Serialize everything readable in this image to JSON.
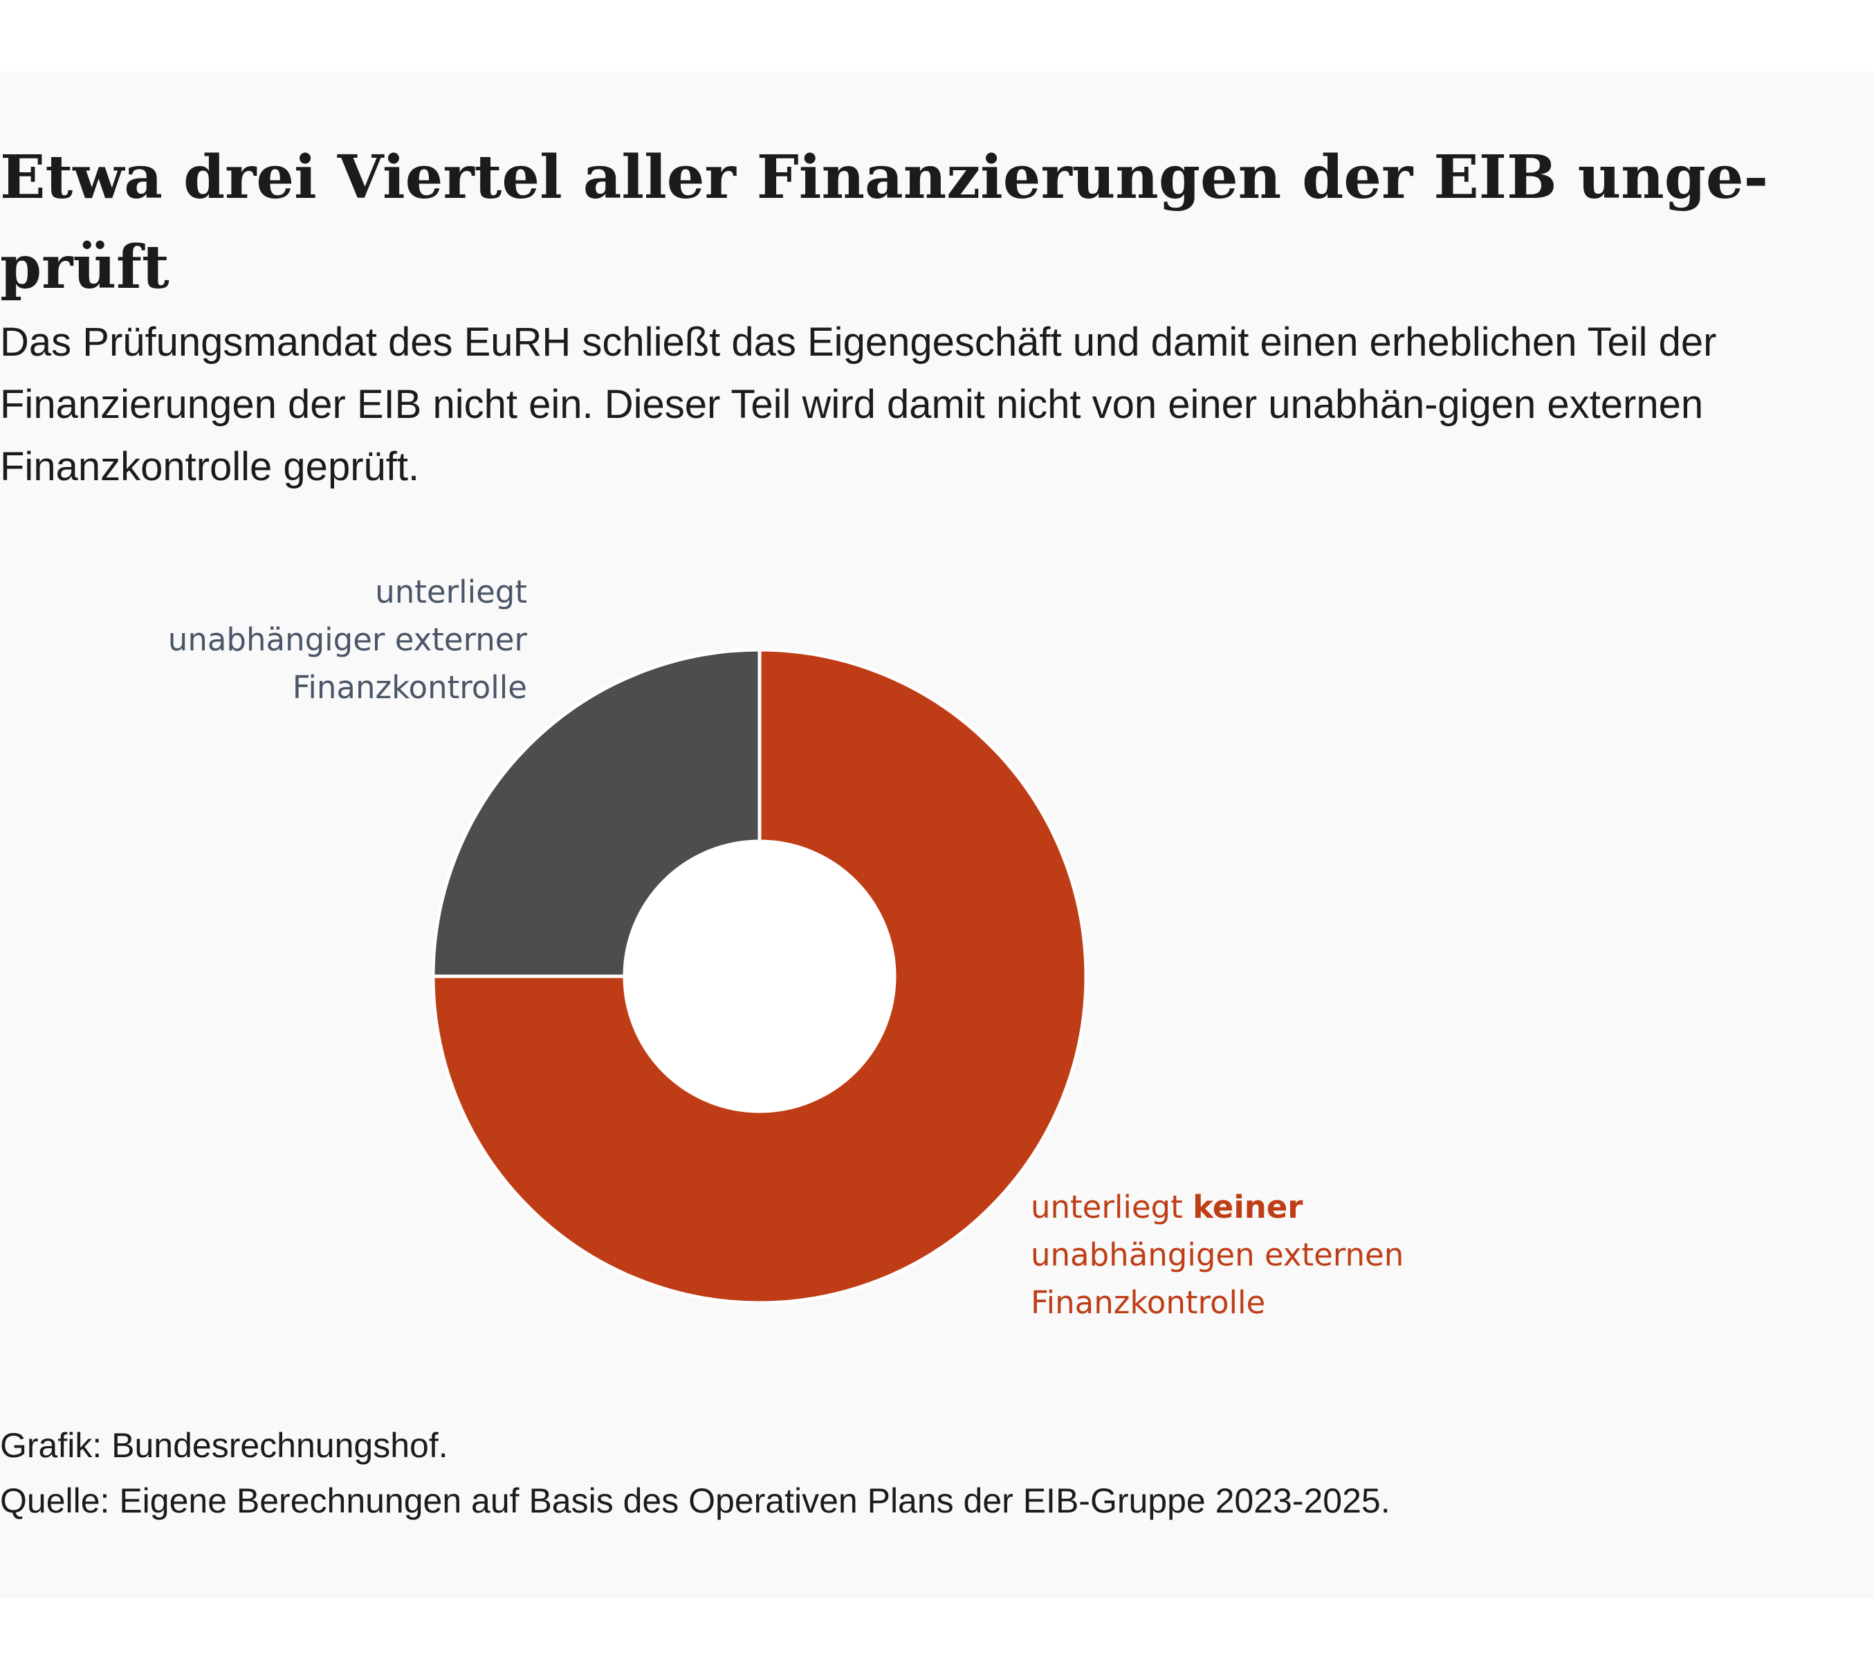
{
  "title": "Etwa drei Viertel aller Finanzierungen der EIB unge-prüft",
  "subtitle": "Das Prüfungsmandat des EuRH schließt das Eigengeschäft und damit einen erheblichen Teil der Finanzierungen der EIB nicht ein. Dieser Teil wird damit nicht von einer unabhän-gigen externen Finanzkontrolle geprüft.",
  "chart_data": {
    "type": "pie",
    "donut": true,
    "title": "Etwa drei Viertel aller Finanzierungen der EIB unge-prüft",
    "start_angle_deg": 0,
    "direction": "clockwise",
    "slices": [
      {
        "name": "unterliegt keiner unabhängigen externen Finanzkontrolle",
        "value": 75,
        "color": "#bf3d16",
        "label_lines": [
          {
            "normal": "unterliegt ",
            "bold": "keiner"
          },
          {
            "normal": "unabhängigen externen",
            "bold": ""
          },
          {
            "normal": "Finanzkontrolle",
            "bold": ""
          }
        ]
      },
      {
        "name": "unterliegt unabhängiger externer Finanzkontrolle",
        "value": 25,
        "color": "#4d4d4d",
        "label_lines": [
          {
            "normal": "unterliegt",
            "bold": ""
          },
          {
            "normal": "unabhängiger externer",
            "bold": ""
          },
          {
            "normal": "Finanzkontrolle",
            "bold": ""
          }
        ]
      }
    ],
    "label_colors": [
      "#bf3d16",
      "#4a5568"
    ],
    "separator_color": "#ffffff",
    "hole_color": "#ffffff"
  },
  "footer": {
    "credit": "Grafik: Bundesrechnungshof.",
    "source": "Quelle: Eigene Berechnungen auf Basis des Operativen Plans der EIB-Gruppe 2023-2025."
  }
}
